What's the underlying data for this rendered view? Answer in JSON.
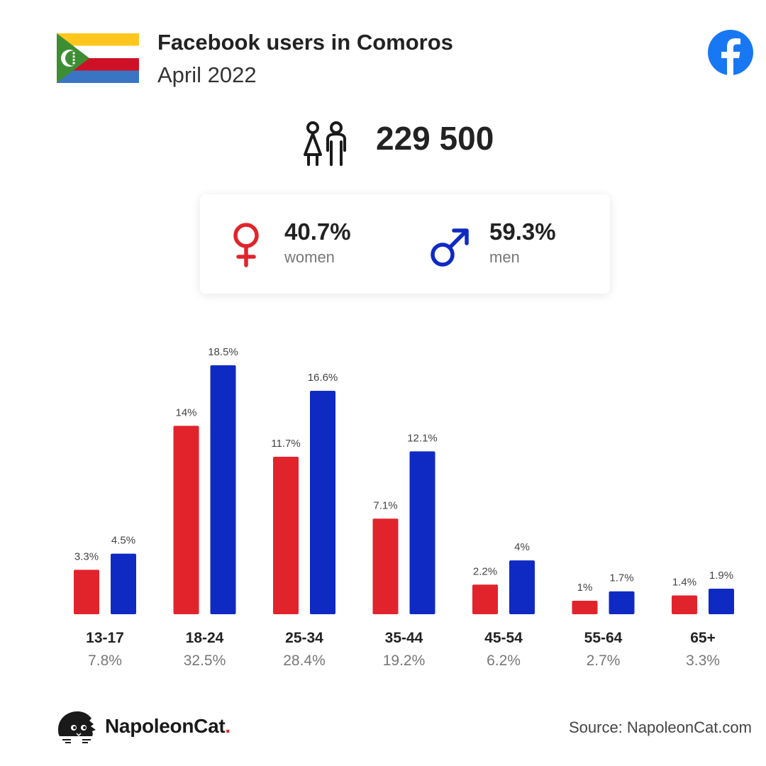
{
  "header": {
    "title": "Facebook users in Comoros",
    "subtitle": "April 2022"
  },
  "flag_icon": "comoros-flag-icon",
  "platform_icon": "facebook-icon",
  "total": {
    "icon": "users-icon",
    "value": "229 500"
  },
  "gender": {
    "women": {
      "icon": "female-symbol-icon",
      "percent": "40.7%",
      "label": "women"
    },
    "men": {
      "icon": "male-symbol-icon",
      "percent": "59.3%",
      "label": "men"
    }
  },
  "colors": {
    "women": "#e1242c",
    "men": "#0f2ac3",
    "text": "#222222",
    "muted": "#777777"
  },
  "chart_data": {
    "type": "bar",
    "categories": [
      "13-17",
      "18-24",
      "25-34",
      "35-44",
      "45-54",
      "55-64",
      "65+"
    ],
    "category_totals": [
      "7.8%",
      "32.5%",
      "28.4%",
      "19.2%",
      "6.2%",
      "2.7%",
      "3.3%"
    ],
    "series": [
      {
        "values": [
          3.3,
          14,
          11.7,
          7.1,
          2.2,
          1,
          1.4
        ],
        "labels": [
          "3.3%",
          "14%",
          "11.7%",
          "7.1%",
          "2.2%",
          "1%",
          "1.4%"
        ],
        "color": "#e1242c"
      },
      {
        "values": [
          4.5,
          18.5,
          16.6,
          12.1,
          4,
          1.7,
          1.9
        ],
        "labels": [
          "4.5%",
          "18.5%",
          "16.6%",
          "12.1%",
          "4%",
          "1.7%",
          "1.9%"
        ],
        "color": "#0f2ac3"
      }
    ],
    "ylim": [
      0,
      18.5
    ],
    "grid": false,
    "legend": "none"
  },
  "footer": {
    "brand_icon": "napoleoncat-logo-icon",
    "brand_name": "NapoleonCat",
    "brand_dot": ".",
    "source": "Source: NapoleonCat.com"
  }
}
